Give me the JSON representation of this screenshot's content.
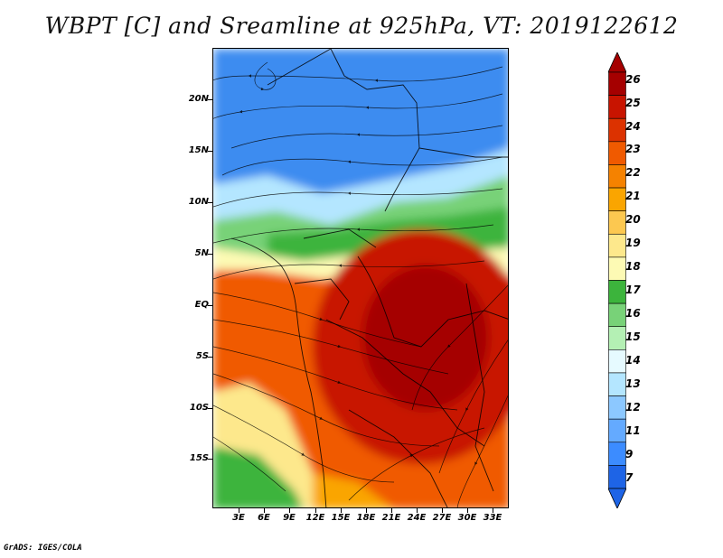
{
  "title": "WBPT [C] and Sreamline at 925hPa, VT: 2019122612",
  "footer": "GrADS: IGES/COLA",
  "y_axis_labels": [
    "20N",
    "15N",
    "10N",
    "5N",
    "EQ",
    "5S",
    "10S",
    "15S"
  ],
  "x_axis_labels": [
    "3E",
    "6E",
    "9E",
    "12E",
    "15E",
    "18E",
    "21E",
    "24E",
    "27E",
    "30E",
    "33E"
  ],
  "colorbar": {
    "labels": [
      "26",
      "25",
      "24",
      "23",
      "22",
      "21",
      "20",
      "19",
      "18",
      "17",
      "16",
      "15",
      "14",
      "13",
      "12",
      "11",
      "9",
      "7"
    ],
    "colors": [
      "#a50000",
      "#c81400",
      "#dc3200",
      "#f05a00",
      "#f58200",
      "#faa500",
      "#fcc850",
      "#fde88c",
      "#fdfab4",
      "#3cb43c",
      "#78d278",
      "#b4f0b4",
      "#e6faff",
      "#b4e6ff",
      "#8cc8ff",
      "#64aaff",
      "#3c8cff",
      "#1e64e6"
    ]
  },
  "colors": {
    "north_blue": "#3c8cf0",
    "light_blue": "#b4e6ff",
    "green": "#3cb43c",
    "cream": "#fdfab4",
    "orange": "#f05a00",
    "red": "#c81400",
    "dark_red": "#a50000"
  }
}
